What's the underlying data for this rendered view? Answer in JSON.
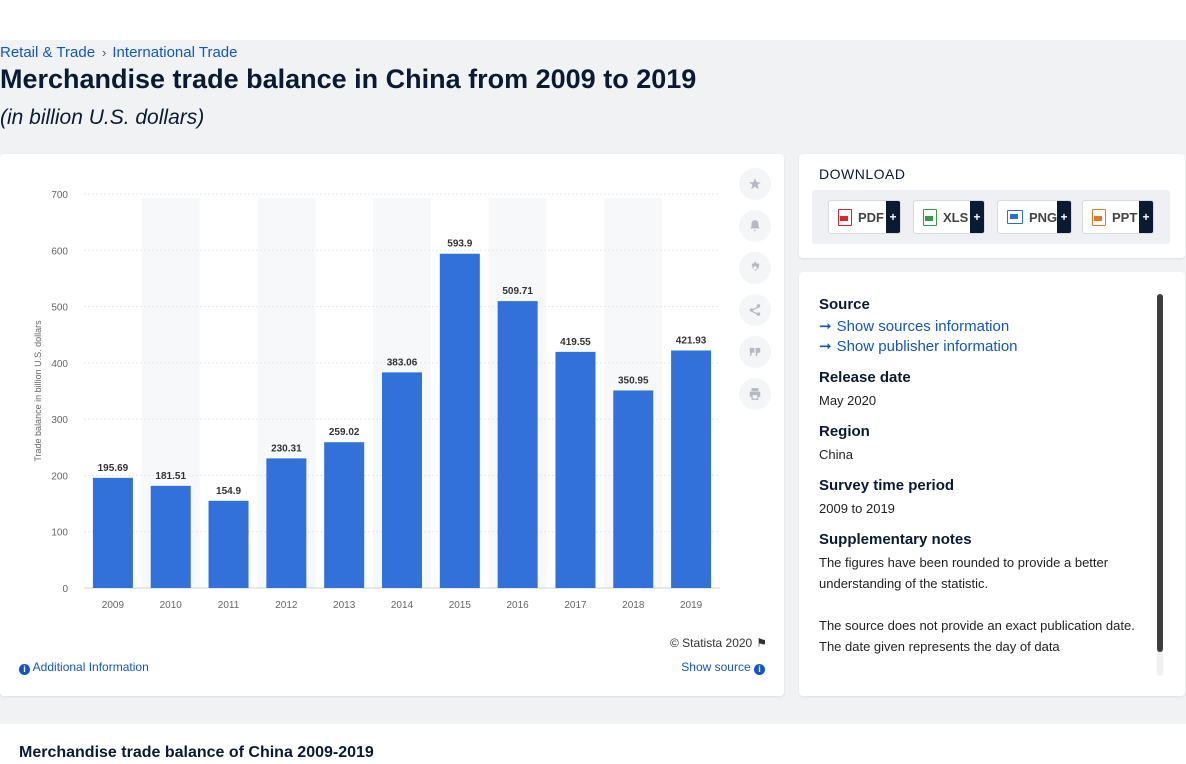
{
  "breadcrumb": {
    "items": [
      "Retail & Trade",
      "International Trade"
    ]
  },
  "page": {
    "title": "Merchandise trade balance in China from 2009 to 2019",
    "subtitle": "(in billion U.S. dollars)"
  },
  "chart_data": {
    "type": "bar",
    "categories": [
      "2009",
      "2010",
      "2011",
      "2012",
      "2013",
      "2014",
      "2015",
      "2016",
      "2017",
      "2018",
      "2019"
    ],
    "values": [
      195.69,
      181.51,
      154.9,
      230.31,
      259.02,
      383.06,
      593.9,
      509.71,
      419.55,
      350.95,
      421.93
    ],
    "value_labels": [
      "195.69",
      "181.51",
      "154.9",
      "230.31",
      "259.02",
      "383.06",
      "593.9",
      "509.71",
      "419.55",
      "350.95",
      "421.93"
    ],
    "ylabel": "Trade balance in billion U.S. dollars",
    "ylim": [
      0,
      700
    ],
    "yticks": [
      "0",
      "100",
      "200",
      "300",
      "400",
      "500",
      "600",
      "700"
    ],
    "grid": true,
    "bar_color": "#3171d9"
  },
  "chart_footer": {
    "copyright": "© Statista 2020",
    "additional_info": "Additional Information",
    "show_source": "Show source"
  },
  "tools": [
    "star-icon",
    "bell-icon",
    "gear-icon",
    "share-icon",
    "quote-icon",
    "print-icon"
  ],
  "download": {
    "heading": "DOWNLOAD",
    "formats": [
      {
        "label": "PDF",
        "color": "#d9262c"
      },
      {
        "label": "XLS",
        "color": "#2f9e44"
      },
      {
        "label": "PNG",
        "color": "#2c6fd1"
      },
      {
        "label": "PPT",
        "color": "#e8781f"
      }
    ],
    "plus": "+"
  },
  "meta": {
    "source_label": "Source",
    "show_sources": "Show sources information",
    "show_publisher": "Show publisher information",
    "release_label": "Release date",
    "release_value": "May 2020",
    "region_label": "Region",
    "region_value": "China",
    "survey_label": "Survey time period",
    "survey_value": "2009 to 2019",
    "notes_label": "Supplementary notes",
    "notes_1": "The figures have been rounded to provide a better understanding of the statistic.",
    "notes_2": "The source does not provide an exact publication date. The date given represents the day of data"
  },
  "bottom": {
    "title": "Merchandise trade balance of China 2009-2019"
  }
}
